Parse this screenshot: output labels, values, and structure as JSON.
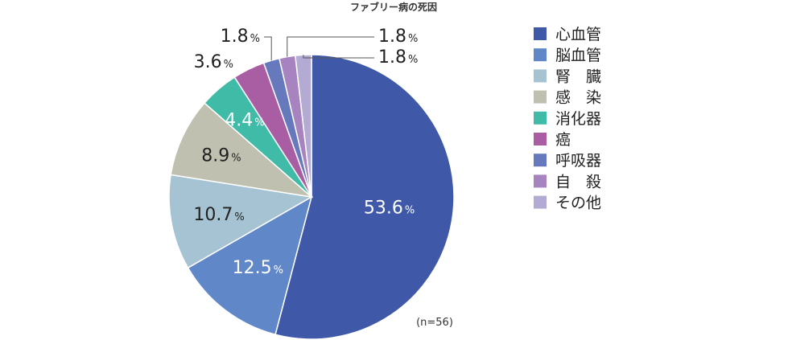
{
  "chart_data": {
    "type": "pie",
    "title": "ファブリー病の死因",
    "note": "(n=56)",
    "unit": "%",
    "categories": [
      "心血管",
      "脳血管",
      "腎　臓",
      "感　染",
      "消化器",
      "癌",
      "呼吸器",
      "自　殺",
      "その他"
    ],
    "values": [
      53.6,
      12.5,
      10.7,
      8.9,
      4.4,
      3.6,
      1.8,
      1.8,
      1.8
    ],
    "value_labels": [
      "53.6",
      "12.5",
      "10.7",
      "8.9",
      "4.4",
      "3.6",
      "1.8",
      "1.8",
      "1.8"
    ],
    "colors": [
      "#3f59a8",
      "#6087c7",
      "#a5c3d3",
      "#c0c0b0",
      "#3fbba7",
      "#a95ea3",
      "#6779bd",
      "#a784c0",
      "#b4abd4"
    ],
    "label_colors": [
      "#ffffff",
      "#ffffff",
      "#222222",
      "#222222",
      "#ffffff",
      "#222222",
      "#222222",
      "#222222",
      "#222222"
    ],
    "start_angle_deg": 0,
    "direction": "clockwise",
    "legend_position": "right"
  }
}
